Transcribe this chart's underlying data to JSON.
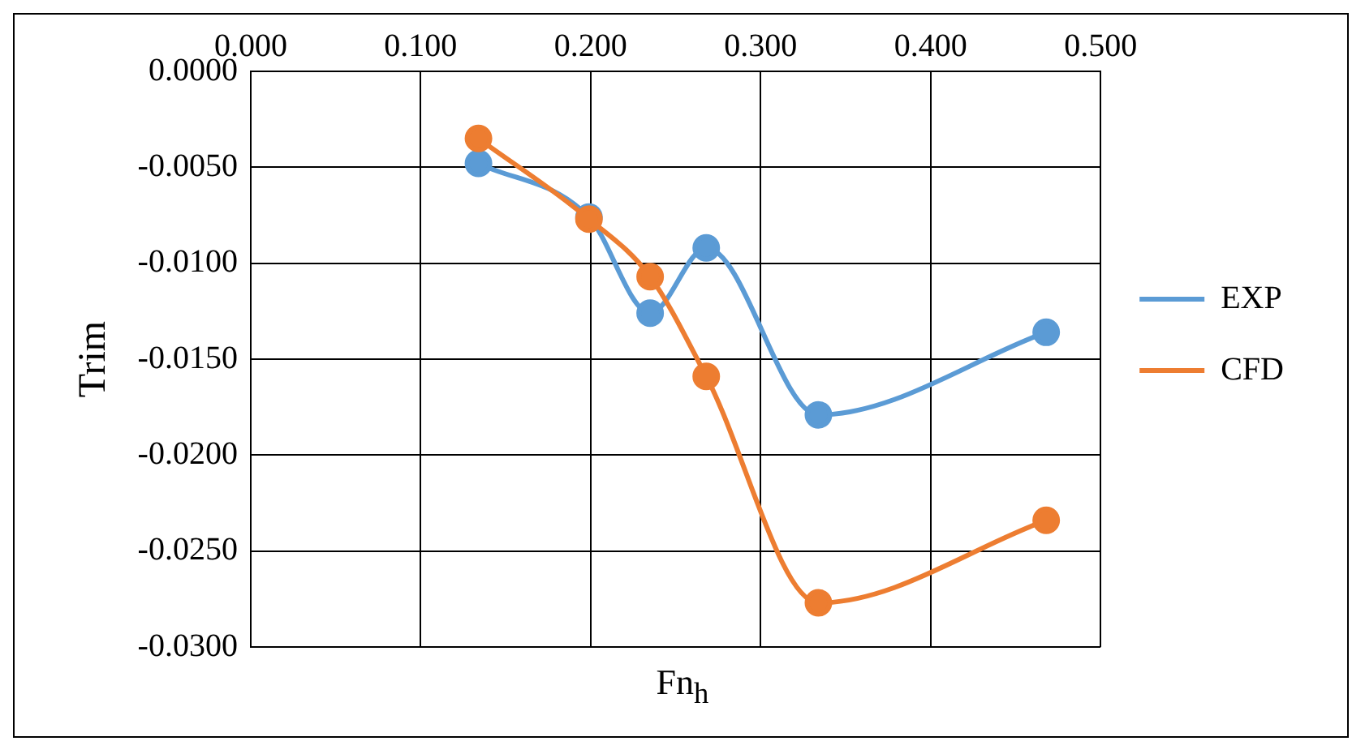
{
  "chart_data": {
    "type": "line",
    "xlabel": "Fn$_{h}$",
    "ylabel": "Trim",
    "xlim": [
      0,
      0.5
    ],
    "xticks": [
      {
        "value": 0,
        "label": "0.000"
      },
      {
        "value": 0.1,
        "label": "0.100"
      },
      {
        "value": 0.2,
        "label": "0.200"
      },
      {
        "value": 0.3,
        "label": "0.300"
      },
      {
        "value": 0.4,
        "label": "0.400"
      },
      {
        "value": 0.5,
        "label": "0.500"
      }
    ],
    "ylim": [
      -0.03,
      0
    ],
    "yticks": [
      {
        "value": 0,
        "label": "0.0000"
      },
      {
        "value": -0.005,
        "label": "-0.0050"
      },
      {
        "value": -0.01,
        "label": "-0.0100"
      },
      {
        "value": -0.015,
        "label": "-0.0150"
      },
      {
        "value": -0.02,
        "label": "-0.0200"
      },
      {
        "value": -0.025,
        "label": "-0.0250"
      },
      {
        "value": -0.03,
        "label": "-0.0300"
      }
    ],
    "x": [
      0.134,
      0.199,
      0.235,
      0.268,
      0.334,
      0.468
    ],
    "series": [
      {
        "name": "EXP",
        "color": "#5b9bd5",
        "values": [
          -0.0048,
          -0.0076,
          -0.0126,
          -0.0092,
          -0.0179,
          -0.0136
        ]
      },
      {
        "name": "CFD",
        "color": "#ed7d31",
        "values": [
          -0.0035,
          -0.0077,
          -0.0107,
          -0.0159,
          -0.0277,
          -0.0234
        ]
      }
    ],
    "grid": true,
    "legend": "right",
    "marker": "circle",
    "line_style": "solid"
  }
}
